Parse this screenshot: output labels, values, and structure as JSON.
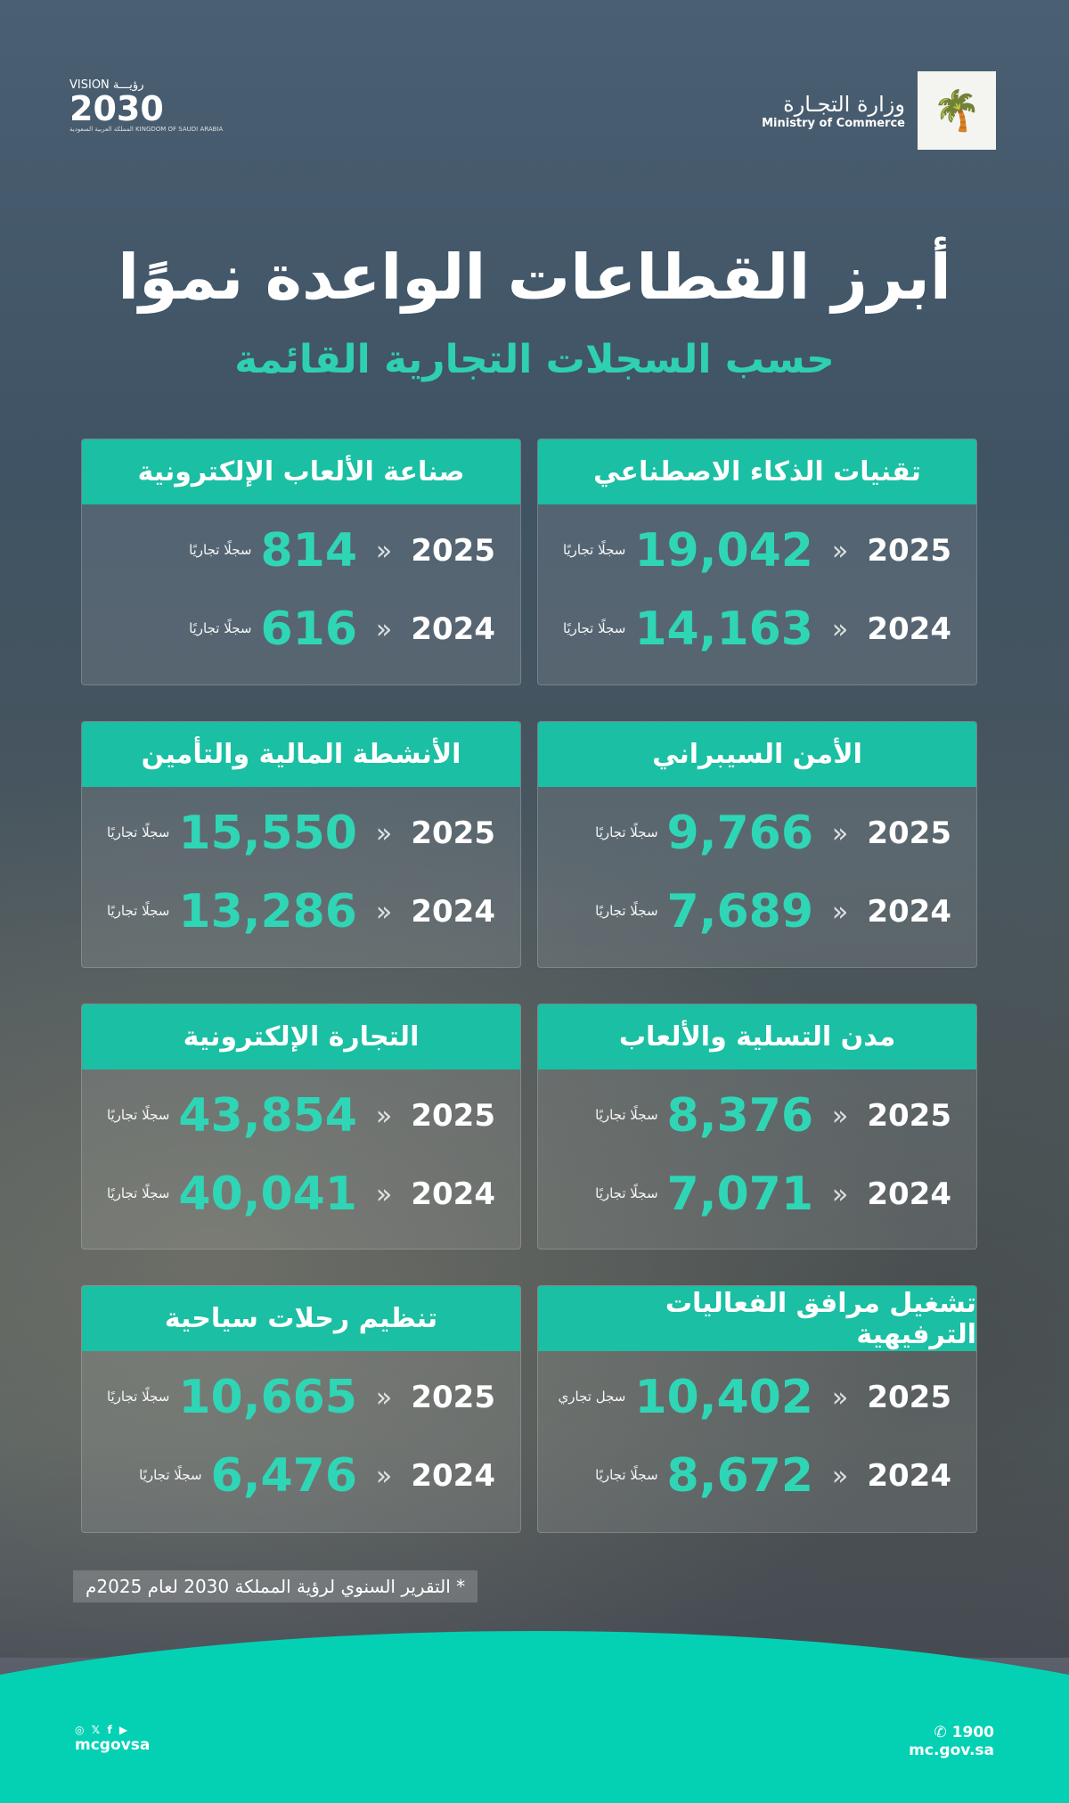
{
  "header": {
    "ministry_ar": "وزارة التجـارة",
    "ministry_en": "Ministry of Commerce",
    "vision_top": "VISION رؤيـــة",
    "vision_num": "2030",
    "vision_sub": "المملكة العربية السعودية KINGDOM OF SAUDI ARABIA"
  },
  "title": "أبرز القطاعات الواعدة نموًا",
  "subtitle": "حسب السجلات التجارية القائمة",
  "cards": [
    {
      "title": "تقنيات الذكاء الاصطناعي",
      "rows": [
        {
          "year": "2025",
          "value": "19,042",
          "unit": "سجلًا تجاريًا"
        },
        {
          "year": "2024",
          "value": "14,163",
          "unit": "سجلًا تجاريًا"
        }
      ]
    },
    {
      "title": "صناعة الألعاب الإلكترونية",
      "rows": [
        {
          "year": "2025",
          "value": "814",
          "unit": "سجلًا تجاريًا"
        },
        {
          "year": "2024",
          "value": "616",
          "unit": "سجلًا تجاريًا"
        }
      ]
    },
    {
      "title": "الأمن السيبراني",
      "rows": [
        {
          "year": "2025",
          "value": "9,766",
          "unit": "سجلًا تجاريًا"
        },
        {
          "year": "2024",
          "value": "7,689",
          "unit": "سجلًا تجاريًا"
        }
      ]
    },
    {
      "title": "الأنشطة المالية والتأمين",
      "rows": [
        {
          "year": "2025",
          "value": "15,550",
          "unit": "سجلًا تجاريًا"
        },
        {
          "year": "2024",
          "value": "13,286",
          "unit": "سجلًا تجاريًا"
        }
      ]
    },
    {
      "title": "مدن التسلية والألعاب",
      "rows": [
        {
          "year": "2025",
          "value": "8,376",
          "unit": "سجلًا تجاريًا"
        },
        {
          "year": "2024",
          "value": "7,071",
          "unit": "سجلًا تجاريًا"
        }
      ]
    },
    {
      "title": "التجارة الإلكترونية",
      "rows": [
        {
          "year": "2025",
          "value": "43,854",
          "unit": "سجلًا تجاريًا"
        },
        {
          "year": "2024",
          "value": "40,041",
          "unit": "سجلًا تجاريًا"
        }
      ]
    },
    {
      "title": "تشغيل مرافق الفعاليات الترفيهية",
      "rows": [
        {
          "year": "2025",
          "value": "10,402",
          "unit": "سجل تجاري"
        },
        {
          "year": "2024",
          "value": "8,672",
          "unit": "سجلًا تجاريًا"
        }
      ]
    },
    {
      "title": "تنظيم رحلات سياحية",
      "rows": [
        {
          "year": "2025",
          "value": "10,665",
          "unit": "سجلًا تجاريًا"
        },
        {
          "year": "2024",
          "value": "6,476",
          "unit": "سجلًا تجاريًا"
        }
      ]
    }
  ],
  "arrow_glyph": "«",
  "footnote": "* التقرير السنوي لرؤية المملكة 2030 لعام 2025م",
  "footer": {
    "social_icons": "◎ 𝕏 f ▶",
    "handle": "mcgovsa",
    "phone": "✆ 1900",
    "website": "mc.gov.sa"
  },
  "colors": {
    "accent": "#1bbfa3",
    "number": "#2fd6b6",
    "footer": "#04d1b4",
    "background": "#3d5063"
  }
}
